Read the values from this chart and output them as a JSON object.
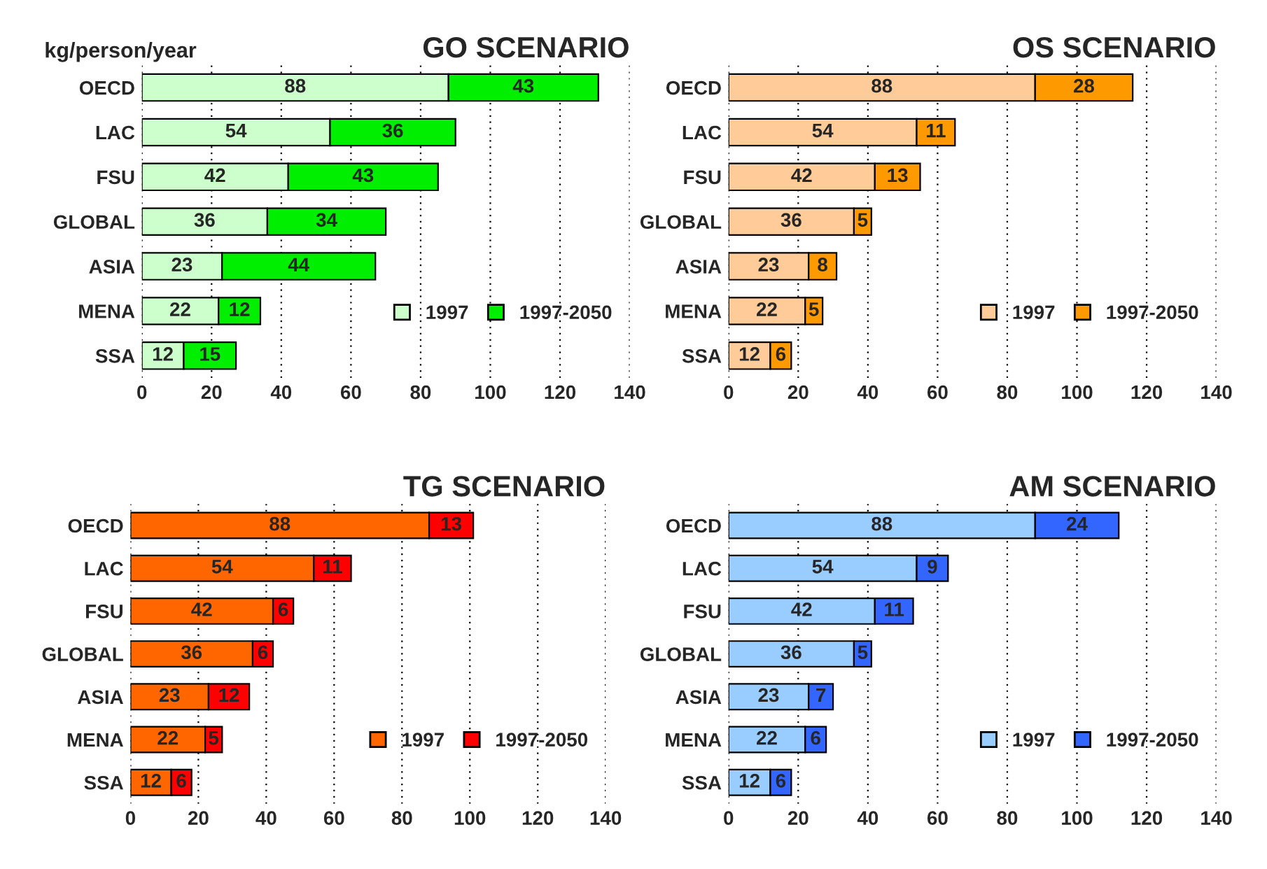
{
  "chart_data": [
    {
      "type": "bar",
      "orientation": "horizontal",
      "stacked": true,
      "title": "GO SCENARIO",
      "ylabel": "kg/person/year",
      "categories": [
        "OECD",
        "LAC",
        "FSU",
        "GLOBAL",
        "ASIA",
        "MENA",
        "SSA"
      ],
      "series": [
        {
          "name": "1997",
          "color": "#ccffcc",
          "values": [
            88,
            54,
            42,
            36,
            23,
            22,
            12
          ]
        },
        {
          "name": "1997-2050",
          "color": "#00ee00",
          "values": [
            43,
            36,
            43,
            34,
            44,
            12,
            15
          ]
        }
      ],
      "xlim": [
        0,
        140
      ],
      "xticks": [
        0,
        20,
        40,
        60,
        80,
        100,
        120,
        140
      ],
      "grid": "x",
      "legend": "bottom right",
      "data_labels": true
    },
    {
      "type": "bar",
      "orientation": "horizontal",
      "stacked": true,
      "title": "OS SCENARIO",
      "categories": [
        "OECD",
        "LAC",
        "FSU",
        "GLOBAL",
        "ASIA",
        "MENA",
        "SSA"
      ],
      "series": [
        {
          "name": "1997",
          "color": "#ffcc99",
          "values": [
            88,
            54,
            42,
            36,
            23,
            22,
            12
          ]
        },
        {
          "name": "1997-2050",
          "color": "#ff9900",
          "values": [
            28,
            11,
            13,
            5,
            8,
            5,
            6
          ]
        }
      ],
      "xlim": [
        0,
        140
      ],
      "xticks": [
        0,
        20,
        40,
        60,
        80,
        100,
        120,
        140
      ],
      "grid": "x",
      "legend": "bottom right",
      "data_labels": true
    },
    {
      "type": "bar",
      "orientation": "horizontal",
      "stacked": true,
      "title": "TG SCENARIO",
      "categories": [
        "OECD",
        "LAC",
        "FSU",
        "GLOBAL",
        "ASIA",
        "MENA",
        "SSA"
      ],
      "series": [
        {
          "name": "1997",
          "color": "#ff6600",
          "values": [
            88,
            54,
            42,
            36,
            23,
            22,
            12
          ]
        },
        {
          "name": "1997-2050",
          "color": "#ff0000",
          "values": [
            13,
            11,
            6,
            6,
            12,
            5,
            6
          ]
        }
      ],
      "xlim": [
        0,
        140
      ],
      "xticks": [
        0,
        20,
        40,
        60,
        80,
        100,
        120,
        140
      ],
      "grid": "x",
      "legend": "bottom right",
      "data_labels": true
    },
    {
      "type": "bar",
      "orientation": "horizontal",
      "stacked": true,
      "title": "AM SCENARIO",
      "categories": [
        "OECD",
        "LAC",
        "FSU",
        "GLOBAL",
        "ASIA",
        "MENA",
        "SSA"
      ],
      "series": [
        {
          "name": "1997",
          "color": "#99ccff",
          "values": [
            88,
            54,
            42,
            36,
            23,
            22,
            12
          ]
        },
        {
          "name": "1997-2050",
          "color": "#3366ff",
          "values": [
            24,
            9,
            11,
            5,
            7,
            6,
            6
          ]
        }
      ],
      "xlim": [
        0,
        140
      ],
      "xticks": [
        0,
        20,
        40,
        60,
        80,
        100,
        120,
        140
      ],
      "grid": "x",
      "legend": "bottom right",
      "data_labels": true
    }
  ]
}
